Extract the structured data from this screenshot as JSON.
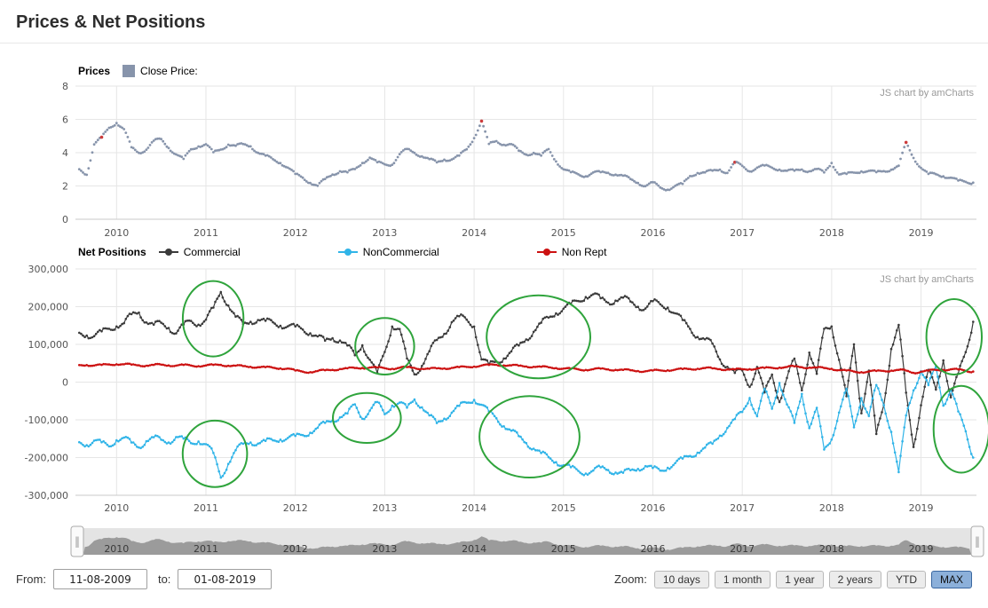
{
  "page": {
    "title": "Prices & Net Positions"
  },
  "controls": {
    "from_label": "From:",
    "from_value": "11-08-2009",
    "to_label": "to:",
    "to_value": "01-08-2019",
    "zoom_label": "Zoom:",
    "zoom_buttons": [
      {
        "label": "10 days",
        "active": false
      },
      {
        "label": "1 month",
        "active": false
      },
      {
        "label": "1 year",
        "active": false
      },
      {
        "label": "2 years",
        "active": false
      },
      {
        "label": "YTD",
        "active": false
      },
      {
        "label": "MAX",
        "active": true
      }
    ]
  },
  "chart_data": [
    {
      "name": "prices",
      "type": "scatter",
      "title": "Prices",
      "legend": [
        {
          "label": "Close Price:",
          "color": "#8794ab"
        }
      ],
      "watermark": "JS chart by amCharts",
      "x_start": 2009.583,
      "x_step": 0.083333,
      "xlim": [
        2009.54,
        2019.62
      ],
      "x_ticks": [
        2010,
        2011,
        2012,
        2013,
        2014,
        2015,
        2016,
        2017,
        2018,
        2019
      ],
      "ylim": [
        0,
        8
      ],
      "y_ticks": [
        0,
        2,
        4,
        6,
        8
      ],
      "point_color": "#8794ab",
      "red_color": "#cc3b3b",
      "red_point_indices": [
        3,
        54,
        88,
        111
      ],
      "values": [
        3.0,
        2.7,
        4.5,
        4.9,
        5.5,
        5.8,
        5.4,
        4.3,
        4.0,
        4.2,
        4.7,
        4.8,
        4.3,
        3.9,
        3.6,
        4.2,
        4.4,
        4.5,
        4.0,
        4.2,
        4.5,
        4.4,
        4.5,
        4.4,
        4.0,
        3.8,
        3.6,
        3.4,
        3.1,
        2.7,
        2.5,
        2.2,
        2.0,
        2.4,
        2.7,
        2.9,
        2.8,
        3.0,
        3.4,
        3.7,
        3.4,
        3.3,
        3.3,
        3.9,
        4.2,
        4.0,
        3.8,
        3.6,
        3.4,
        3.6,
        3.6,
        3.8,
        4.2,
        4.9,
        5.9,
        4.5,
        4.7,
        4.5,
        4.5,
        4.1,
        3.9,
        4.0,
        3.8,
        4.2,
        3.5,
        3.0,
        2.8,
        2.7,
        2.6,
        2.8,
        2.8,
        2.8,
        2.7,
        2.6,
        2.4,
        2.2,
        2.0,
        2.2,
        1.9,
        1.8,
        2.0,
        2.1,
        2.6,
        2.8,
        2.8,
        2.9,
        3.0,
        2.8,
        3.4,
        3.2,
        2.9,
        3.1,
        3.2,
        3.1,
        3.0,
        2.9,
        2.9,
        3.0,
        2.9,
        3.0,
        2.8,
        3.4,
        2.7,
        2.7,
        2.8,
        2.9,
        2.9,
        2.8,
        2.9,
        3.0,
        3.2,
        4.6,
        3.7,
        3.1,
        2.7,
        2.7,
        2.6,
        2.5,
        2.3,
        2.25,
        2.2
      ]
    },
    {
      "name": "net_positions",
      "type": "line",
      "title": "Net Positions",
      "watermark": "JS chart by amCharts",
      "x_start": 2009.583,
      "x_step": 0.083333,
      "xlim": [
        2009.54,
        2019.62
      ],
      "x_ticks": [
        2010,
        2011,
        2012,
        2013,
        2014,
        2015,
        2016,
        2017,
        2018,
        2019
      ],
      "ylim": [
        -300000,
        300000
      ],
      "y_ticks": [
        300000,
        200000,
        100000,
        0,
        -100000,
        -200000,
        -300000
      ],
      "y_tick_labels": [
        "300,000",
        "200,000",
        "100,000",
        "0",
        "-100,000",
        "-200,000",
        "-300,000"
      ],
      "unit_multiplier": 1000,
      "series": [
        {
          "name": "Commercial",
          "color": "#3b3b3b",
          "values": [
            130,
            126,
            122,
            132,
            142,
            150,
            155,
            178,
            186,
            160,
            150,
            156,
            146,
            130,
            150,
            162,
            155,
            165,
            195,
            240,
            205,
            172,
            152,
            162,
            166,
            160,
            158,
            152,
            148,
            145,
            140,
            132,
            120,
            108,
            118,
            112,
            95,
            70,
            100,
            60,
            22,
            80,
            150,
            140,
            60,
            22,
            45,
            80,
            110,
            130,
            160,
            172,
            165,
            150,
            60,
            45,
            55,
            65,
            80,
            95,
            115,
            135,
            155,
            170,
            185,
            195,
            205,
            215,
            228,
            232,
            220,
            212,
            218,
            222,
            212,
            202,
            196,
            212,
            206,
            200,
            182,
            162,
            142,
            122,
            112,
            100,
            62,
            42,
            22,
            30,
            -10,
            40,
            -30,
            20,
            -50,
            10,
            60,
            -20,
            80,
            20,
            140,
            150,
            60,
            -40,
            100,
            -80,
            30,
            -140,
            -60,
            90,
            150,
            -30,
            -170,
            -60,
            30,
            -20,
            60,
            -40,
            20,
            80,
            160
          ]
        },
        {
          "name": "NonCommercial",
          "color": "#30b4e8",
          "values": [
            -160,
            -165,
            -155,
            -162,
            -170,
            -152,
            -148,
            -162,
            -172,
            -155,
            -148,
            -154,
            -158,
            -145,
            -152,
            -162,
            -155,
            -165,
            -190,
            -252,
            -215,
            -182,
            -165,
            -158,
            -162,
            -158,
            -155,
            -150,
            -148,
            -145,
            -140,
            -132,
            -122,
            -110,
            -100,
            -92,
            -85,
            -60,
            -95,
            -75,
            -55,
            -85,
            -60,
            -55,
            -70,
            -45,
            -65,
            -90,
            -110,
            -95,
            -80,
            -65,
            -55,
            -45,
            -60,
            -80,
            -95,
            -115,
            -130,
            -145,
            -160,
            -175,
            -190,
            -200,
            -210,
            -220,
            -228,
            -235,
            -240,
            -235,
            -228,
            -232,
            -238,
            -242,
            -235,
            -228,
            -222,
            -230,
            -235,
            -225,
            -215,
            -205,
            -195,
            -185,
            -175,
            -165,
            -140,
            -120,
            -100,
            -80,
            -40,
            -90,
            -20,
            -70,
            0,
            -60,
            -110,
            -30,
            -120,
            -70,
            -180,
            -150,
            -80,
            -20,
            -120,
            -40,
            -90,
            -10,
            -60,
            -130,
            -240,
            -90,
            -20,
            30,
            -10,
            40,
            -60,
            -20,
            -80,
            -130,
            -200
          ]
        },
        {
          "name": "Non Rept",
          "color": "#cc1111",
          "values": [
            45,
            46,
            44,
            45,
            47,
            48,
            47,
            46,
            45,
            44,
            45,
            46,
            45,
            44,
            45,
            44,
            43,
            44,
            45,
            46,
            44,
            43,
            42,
            41,
            40,
            39,
            38,
            37,
            36,
            30,
            28,
            27,
            29,
            31,
            33,
            35,
            36,
            37,
            38,
            39,
            38,
            37,
            36,
            38,
            39,
            38,
            36,
            35,
            36,
            37,
            38,
            39,
            40,
            42,
            44,
            45,
            46,
            45,
            44,
            43,
            42,
            41,
            40,
            39,
            38,
            36,
            35,
            34,
            33,
            34,
            35,
            34,
            33,
            32,
            31,
            30,
            29,
            30,
            31,
            32,
            33,
            34,
            35,
            36,
            37,
            36,
            35,
            34,
            33,
            34,
            35,
            36,
            37,
            38,
            39,
            40,
            41,
            40,
            39,
            38,
            37,
            36,
            32,
            30,
            28,
            27,
            28,
            29,
            30,
            31,
            32,
            30,
            25,
            28,
            30,
            32,
            33,
            34,
            33,
            30,
            28
          ]
        }
      ],
      "annotations": {
        "color": "#2fa43c",
        "ellipses": [
          {
            "x": 2011.08,
            "y": 168000,
            "rx_years": 0.34,
            "ry": 100000
          },
          {
            "x": 2013.0,
            "y": 95000,
            "rx_years": 0.33,
            "ry": 75000
          },
          {
            "x": 2014.72,
            "y": 120000,
            "rx_years": 0.58,
            "ry": 110000
          },
          {
            "x": 2019.37,
            "y": 120000,
            "rx_years": 0.31,
            "ry": 100000
          },
          {
            "x": 2011.1,
            "y": -190000,
            "rx_years": 0.36,
            "ry": 88000
          },
          {
            "x": 2012.8,
            "y": -95000,
            "rx_years": 0.38,
            "ry": 66000
          },
          {
            "x": 2014.62,
            "y": -145000,
            "rx_years": 0.56,
            "ry": 108000
          },
          {
            "x": 2019.45,
            "y": -125000,
            "rx_years": 0.31,
            "ry": 115000
          }
        ]
      }
    },
    {
      "name": "navigator",
      "type": "area",
      "based_on": "prices",
      "x_ticks": [
        2010,
        2011,
        2012,
        2013,
        2014,
        2015,
        2016,
        2017,
        2018,
        2019
      ]
    }
  ]
}
